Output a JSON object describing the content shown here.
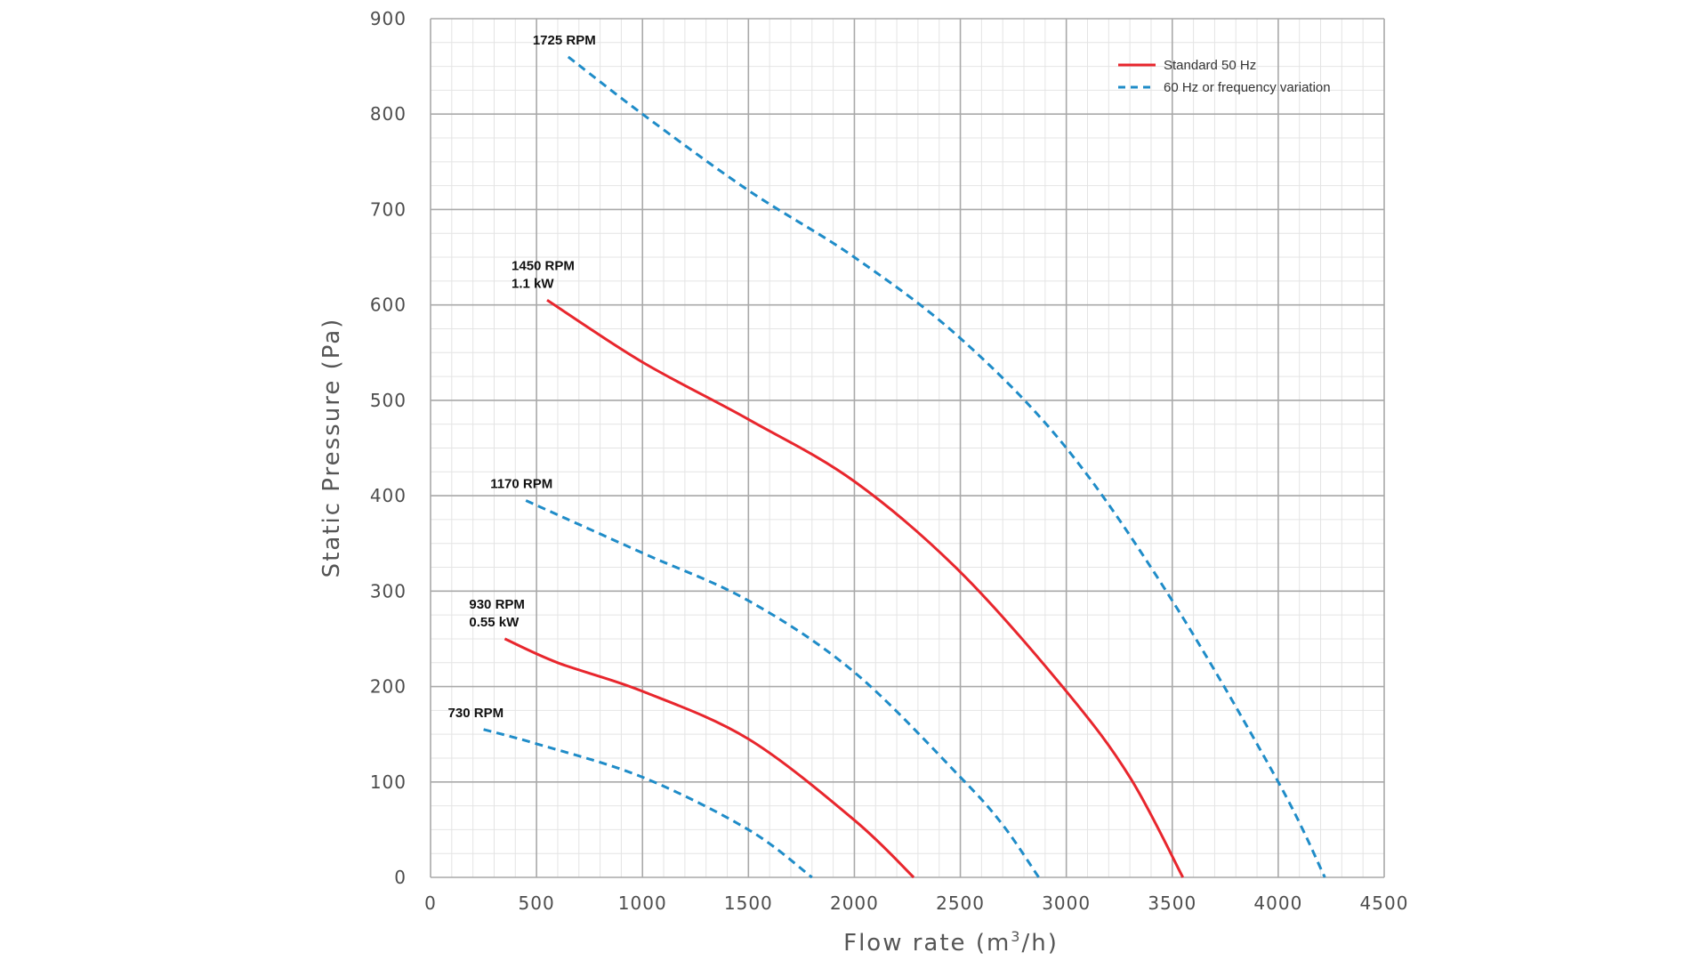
{
  "chart_data": {
    "type": "line",
    "xlabel_main": "Flow rate (m",
    "xlabel_sup": "3",
    "xlabel_end": "/h)",
    "ylabel": "Static Pressure (Pa)",
    "xlim": [
      0,
      4500
    ],
    "ylim": [
      0,
      900
    ],
    "x_ticks": [
      0,
      500,
      1000,
      1500,
      2000,
      2500,
      3000,
      3500,
      4000,
      4500
    ],
    "y_ticks": [
      0,
      100,
      200,
      300,
      400,
      500,
      600,
      700,
      800,
      900
    ],
    "grid": true,
    "legend_position": "top-right",
    "legend": [
      {
        "label": "Standard 50 Hz",
        "style": "solid",
        "color": "#e8262d"
      },
      {
        "label": "60 Hz or frequency variation",
        "style": "dashed",
        "color": "#1f8cc8"
      }
    ],
    "series": [
      {
        "name": "1725 RPM",
        "labels": [
          "1725 RPM"
        ],
        "style": "dashed",
        "color": "#1f8cc8",
        "x": [
          650,
          1000,
          1500,
          2000,
          2500,
          3000,
          3500,
          4000,
          4220
        ],
        "y": [
          860,
          800,
          720,
          650,
          565,
          450,
          290,
          100,
          0
        ]
      },
      {
        "name": "1450 RPM",
        "labels": [
          "1450 RPM",
          "1.1 kW"
        ],
        "style": "solid",
        "color": "#e8262d",
        "x": [
          550,
          1000,
          1500,
          2000,
          2500,
          3000,
          3300,
          3550
        ],
        "y": [
          605,
          540,
          480,
          415,
          320,
          195,
          105,
          0
        ]
      },
      {
        "name": "1170 RPM",
        "labels": [
          "1170 RPM"
        ],
        "style": "dashed",
        "color": "#1f8cc8",
        "x": [
          450,
          1000,
          1500,
          2000,
          2500,
          2700,
          2870
        ],
        "y": [
          395,
          340,
          290,
          215,
          105,
          55,
          0
        ]
      },
      {
        "name": "930 RPM",
        "labels": [
          "930 RPM",
          "0.55 kW"
        ],
        "style": "solid",
        "color": "#e8262d",
        "x": [
          350,
          600,
          1000,
          1500,
          2000,
          2280
        ],
        "y": [
          250,
          225,
          195,
          145,
          60,
          0
        ]
      },
      {
        "name": "730 RPM",
        "labels": [
          "730 RPM"
        ],
        "style": "dashed",
        "color": "#1f8cc8",
        "x": [
          250,
          500,
          1000,
          1500,
          1800
        ],
        "y": [
          155,
          140,
          105,
          50,
          0
        ]
      }
    ]
  }
}
